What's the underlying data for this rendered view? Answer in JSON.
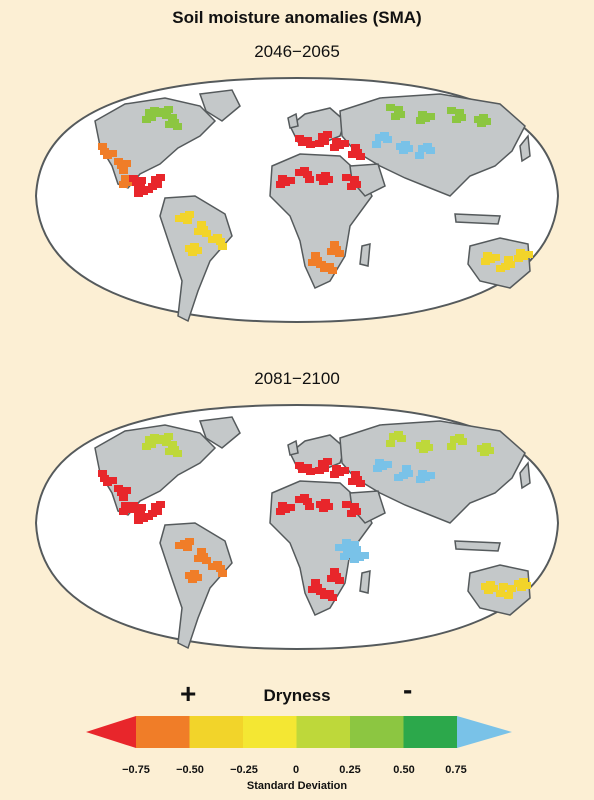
{
  "title": "Soil moisture anomalies (SMA)",
  "panels": [
    {
      "period": "2046−2065",
      "patches": [
        {
          "region": "north-america-west",
          "category": -0.5
        },
        {
          "region": "north-america-north",
          "category": 0.5
        },
        {
          "region": "central-america",
          "category": -0.75
        },
        {
          "region": "amazon",
          "category": -0.25
        },
        {
          "region": "mediterranean",
          "category": -0.75
        },
        {
          "region": "north-africa-sahel",
          "category": -0.75
        },
        {
          "region": "southern-africa",
          "category": -0.5
        },
        {
          "region": "siberia",
          "category": 0.5
        },
        {
          "region": "central-asia",
          "category": 0.75
        },
        {
          "region": "australia",
          "category": -0.25
        }
      ]
    },
    {
      "period": "2081−2100",
      "patches": [
        {
          "region": "north-america-west",
          "category": -0.75
        },
        {
          "region": "north-america-north",
          "category": 0.25
        },
        {
          "region": "central-america",
          "category": -0.75
        },
        {
          "region": "amazon",
          "category": -0.5
        },
        {
          "region": "mediterranean",
          "category": -0.75
        },
        {
          "region": "north-africa-sahel",
          "category": -0.75
        },
        {
          "region": "southern-africa",
          "category": -0.75
        },
        {
          "region": "east-africa",
          "category": 0.75
        },
        {
          "region": "siberia",
          "category": 0.25
        },
        {
          "region": "central-asia",
          "category": 0.75
        },
        {
          "region": "australia",
          "category": -0.25
        }
      ]
    }
  ],
  "legend": {
    "label": "Dryness",
    "plus": "+",
    "minus": "-",
    "units": "Standard Deviation",
    "ticks": [
      "−0.75",
      "−0.50",
      "−0.25",
      "0",
      "0.25",
      "0.50",
      "0.75"
    ],
    "colors": [
      "#e8262b",
      "#f07d28",
      "#f2d42a",
      "#f4e733",
      "#bed83a",
      "#8cc641",
      "#2ca84b",
      "#79c2e8"
    ]
  },
  "colors": {
    "background": "#fcefd4",
    "ocean": "#ffffff",
    "land": "#c4c8c9",
    "coast": "#555a5c"
  }
}
